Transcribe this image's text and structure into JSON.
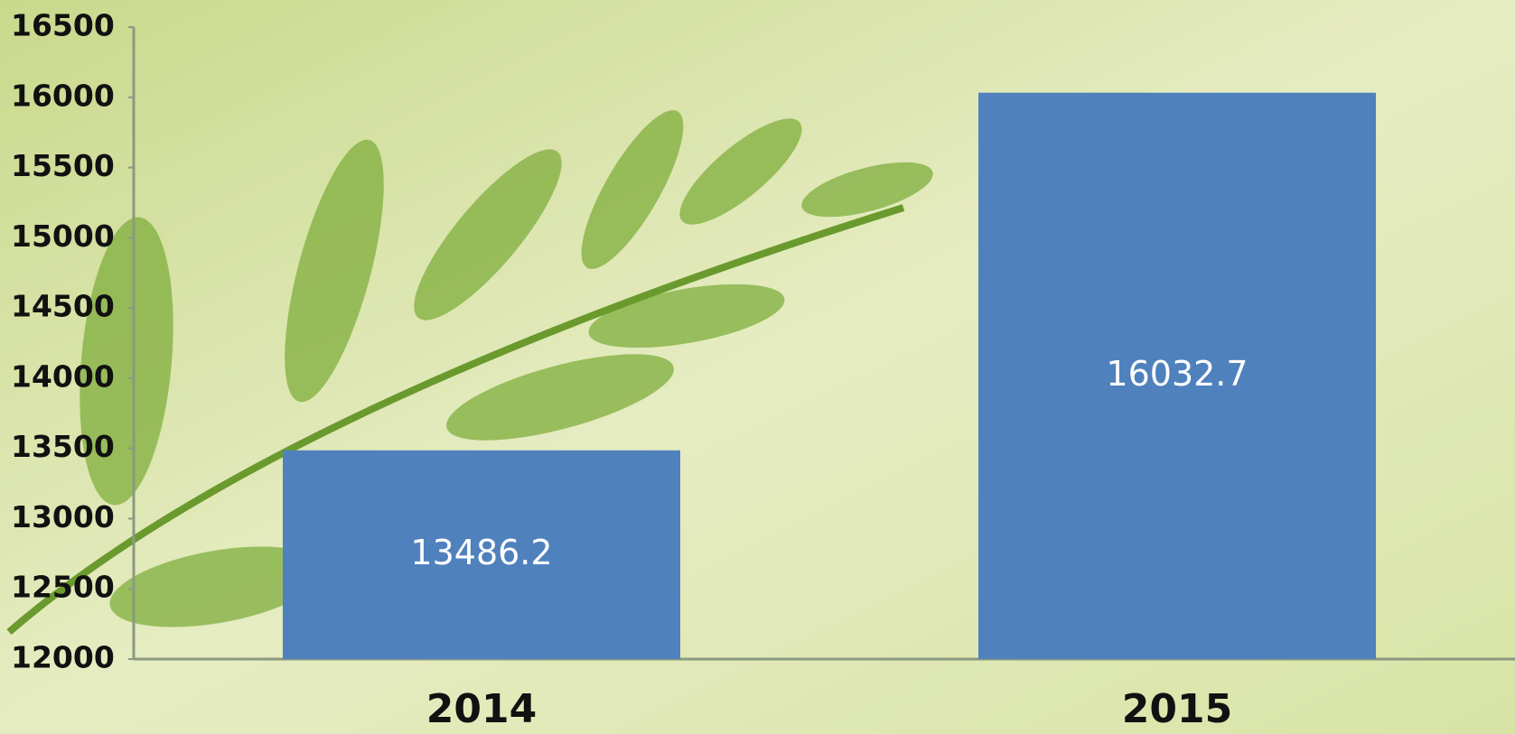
{
  "chart_data": {
    "type": "bar",
    "categories": [
      "2014",
      "2015"
    ],
    "values": [
      13486.2,
      16032.7
    ],
    "color": "#4f81bd",
    "ylim": [
      12000,
      16500
    ],
    "yticks": [
      12000,
      12500,
      13000,
      13500,
      14000,
      14500,
      15000,
      15500,
      16000,
      16500
    ],
    "grid": false
  }
}
